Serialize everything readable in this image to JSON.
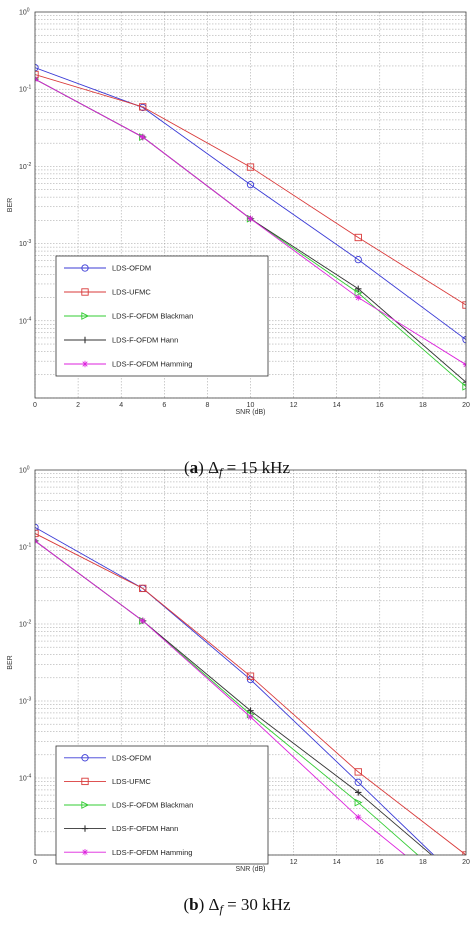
{
  "captions": [
    {
      "label": "a",
      "text": "Δ_f = 15 kHz"
    },
    {
      "label": "b",
      "text": "Δ_f = 30 kHz"
    }
  ],
  "colors": {
    "LDS-OFDM": "#3b3bd6",
    "LDS-UFMC": "#d93a3a",
    "LDS-F-OFDM Blackman": "#33cc33",
    "LDS-F-OFDM Hann": "#333333",
    "LDS-F-OFDM Hamming": "#dd22dd"
  },
  "chart_data": [
    {
      "type": "line",
      "xlabel": "SNR (dB)",
      "ylabel": "BER",
      "xlim": [
        0,
        20
      ],
      "ylim": [
        1e-05,
        1
      ],
      "yscale": "log",
      "grid": true,
      "legend_position": "bottom-left",
      "xticks": [
        "0",
        "2",
        "4",
        "6",
        "8",
        "10",
        "12",
        "14",
        "16",
        "18",
        "20"
      ],
      "yticks": [
        "10^0",
        "10^-1",
        "10^-2",
        "10^-3",
        "10^-4"
      ],
      "x": [
        0,
        5,
        10,
        15,
        20
      ],
      "series": [
        {
          "name": "LDS-OFDM",
          "marker": "circle",
          "values": [
            0.19,
            0.058,
            0.0058,
            0.00062,
            5.7e-05
          ]
        },
        {
          "name": "LDS-UFMC",
          "marker": "square",
          "values": [
            0.155,
            0.059,
            0.0098,
            0.0012,
            0.00016
          ]
        },
        {
          "name": "LDS-F-OFDM Blackman",
          "marker": "triangle-right",
          "values": [
            0.135,
            0.024,
            0.0021,
            0.00023,
            1.4e-05
          ]
        },
        {
          "name": "LDS-F-OFDM Hann",
          "marker": "plus",
          "values": [
            0.135,
            0.024,
            0.0021,
            0.00026,
            1.6e-05
          ]
        },
        {
          "name": "LDS-F-OFDM Hamming",
          "marker": "star",
          "values": [
            0.135,
            0.024,
            0.0021,
            0.0002,
            2.7e-05
          ]
        }
      ]
    },
    {
      "type": "line",
      "xlabel": "SNR (dB)",
      "ylabel": "BER",
      "xlim": [
        0,
        20
      ],
      "ylim": [
        1e-05,
        1
      ],
      "yscale": "log",
      "grid": true,
      "legend_position": "bottom-left",
      "xticks": [
        "0",
        "2",
        "4",
        "6",
        "8",
        "10",
        "12",
        "14",
        "16",
        "18",
        "20"
      ],
      "yticks": [
        "10^0",
        "10^-1",
        "10^-2",
        "10^-3",
        "10^-4"
      ],
      "x": [
        0,
        5,
        10,
        15,
        18.5,
        20
      ],
      "series": [
        {
          "name": "LDS-OFDM",
          "marker": "circle",
          "values": [
            0.18,
            0.029,
            0.0019,
            8.8e-05,
            1e-05,
            null
          ]
        },
        {
          "name": "LDS-UFMC",
          "marker": "square",
          "values": [
            0.15,
            0.029,
            0.0021,
            0.00012,
            null,
            1e-05
          ]
        },
        {
          "name": "LDS-F-OFDM Blackman",
          "marker": "triangle-right",
          "values": [
            0.12,
            0.011,
            0.00067,
            4.8e-05,
            6.6e-06,
            null
          ]
        },
        {
          "name": "LDS-F-OFDM Hann",
          "marker": "plus",
          "values": [
            0.12,
            0.011,
            0.00075,
            6.5e-05,
            9.5e-06,
            null
          ]
        },
        {
          "name": "LDS-F-OFDM Hamming",
          "marker": "star",
          "values": [
            0.12,
            0.011,
            0.00062,
            3.1e-05,
            5e-06,
            null
          ]
        }
      ]
    }
  ]
}
